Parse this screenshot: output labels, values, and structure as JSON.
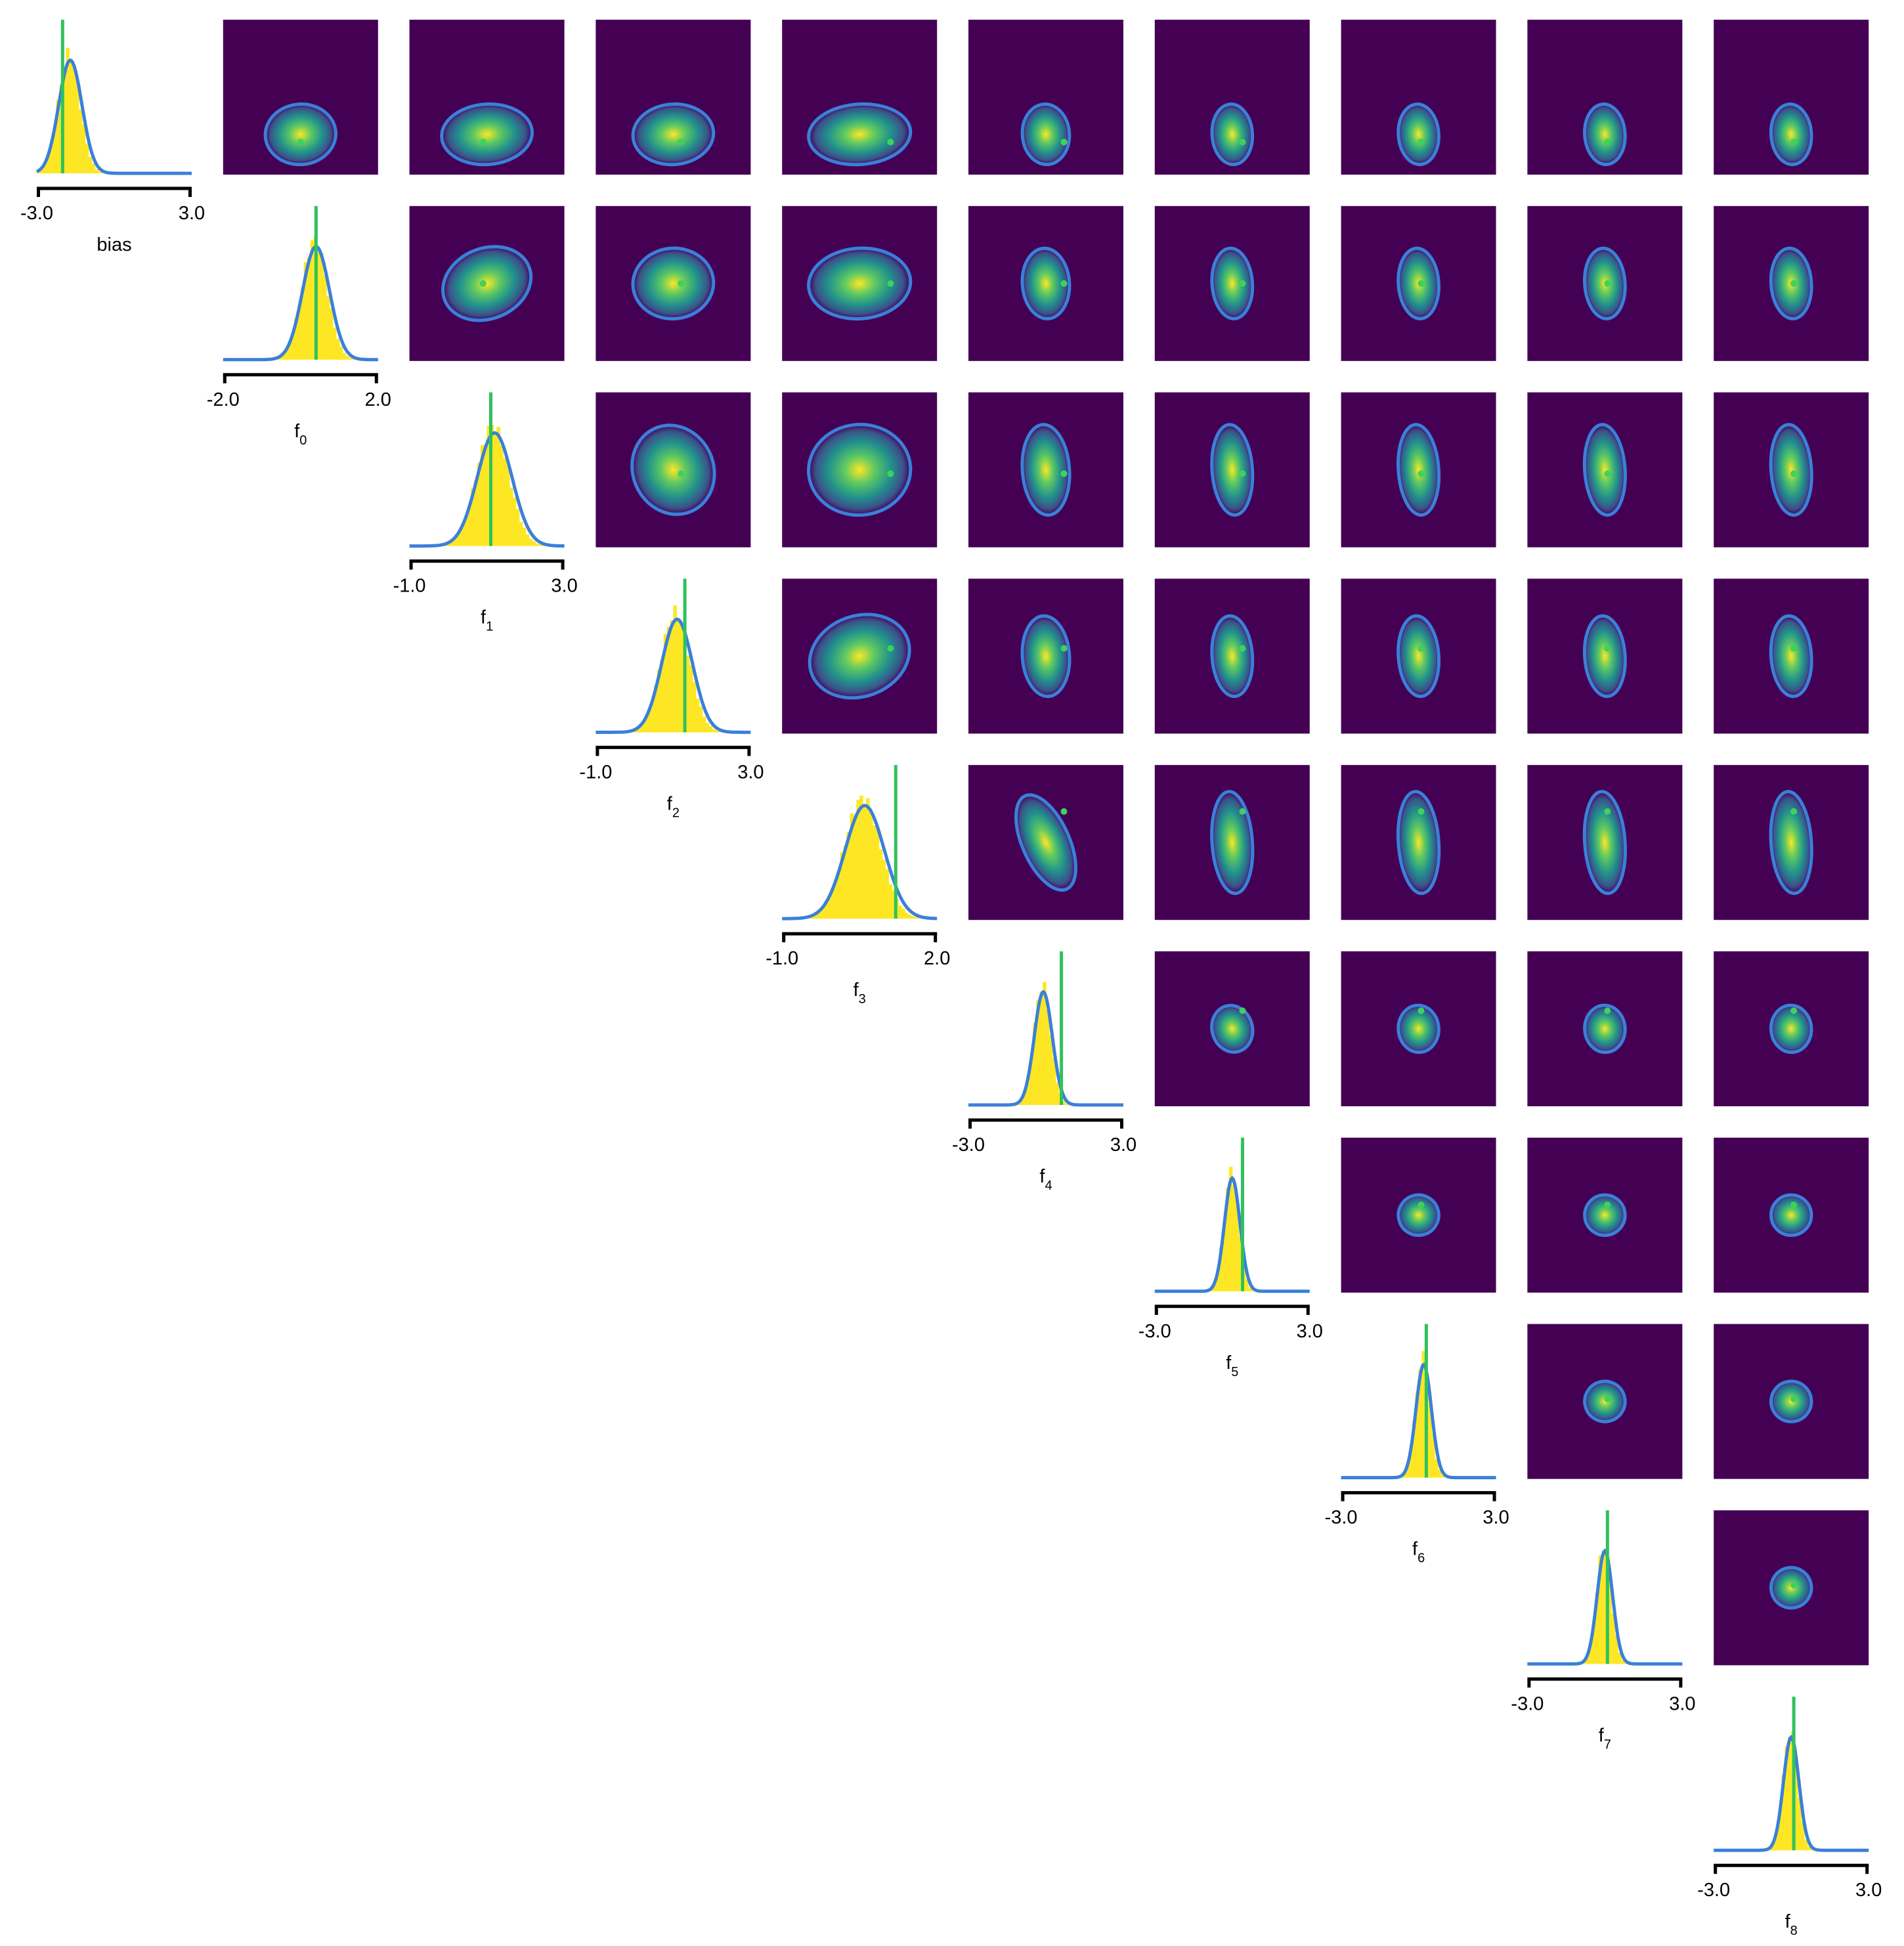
{
  "colors": {
    "background": "#ffffff",
    "histogram": "#fde725",
    "density_curve": "#3a80d9",
    "true_value_line": "#2fc25b",
    "heatmap_low": "#440154",
    "heatmap_mid": "#21918c",
    "heatmap_high": "#fde725",
    "contour": "#3a80d9",
    "true_value_point": "#3fd25b",
    "axis": "#000000"
  },
  "chart_data": {
    "type": "corner",
    "n_parameters": 10,
    "grid": false,
    "parameters": [
      {
        "label": "bias",
        "sub": "",
        "range": [
          -3.0,
          3.0
        ],
        "tick_labels": [
          "-3.0",
          "3.0"
        ],
        "true_value": -2.0,
        "mean": -1.7,
        "sd": 0.45
      },
      {
        "label": "f",
        "sub": "0",
        "range": [
          -2.0,
          2.0
        ],
        "tick_labels": [
          "-2.0",
          "2.0"
        ],
        "true_value": 0.4,
        "mean": 0.4,
        "sd": 0.35
      },
      {
        "label": "f",
        "sub": "1",
        "range": [
          -1.0,
          3.0
        ],
        "tick_labels": [
          "-1.0",
          "3.0"
        ],
        "true_value": 1.1,
        "mean": 1.2,
        "sd": 0.45
      },
      {
        "label": "f",
        "sub": "2",
        "range": [
          -1.0,
          3.0
        ],
        "tick_labels": [
          "-1.0",
          "3.0"
        ],
        "true_value": 1.3,
        "mean": 1.1,
        "sd": 0.4
      },
      {
        "label": "f",
        "sub": "3",
        "range": [
          -1.0,
          2.0
        ],
        "tick_labels": [
          "-1.0",
          "2.0"
        ],
        "true_value": 1.2,
        "mean": 0.6,
        "sd": 0.38
      },
      {
        "label": "f",
        "sub": "4",
        "range": [
          -3.0,
          3.0
        ],
        "tick_labels": [
          "-3.0",
          "3.0"
        ],
        "true_value": 0.6,
        "mean": -0.1,
        "sd": 0.35
      },
      {
        "label": "f",
        "sub": "5",
        "range": [
          -3.0,
          3.0
        ],
        "tick_labels": [
          "-3.0",
          "3.0"
        ],
        "true_value": 0.4,
        "mean": 0.0,
        "sd": 0.3
      },
      {
        "label": "f",
        "sub": "6",
        "range": [
          -3.0,
          3.0
        ],
        "tick_labels": [
          "-3.0",
          "3.0"
        ],
        "true_value": 0.3,
        "mean": 0.2,
        "sd": 0.3
      },
      {
        "label": "f",
        "sub": "7",
        "range": [
          -3.0,
          3.0
        ],
        "tick_labels": [
          "-3.0",
          "3.0"
        ],
        "true_value": 0.1,
        "mean": 0.0,
        "sd": 0.3
      },
      {
        "label": "f",
        "sub": "8",
        "range": [
          -3.0,
          3.0
        ],
        "tick_labels": [
          "-3.0",
          "3.0"
        ],
        "true_value": 0.1,
        "mean": 0.0,
        "sd": 0.3
      }
    ]
  }
}
